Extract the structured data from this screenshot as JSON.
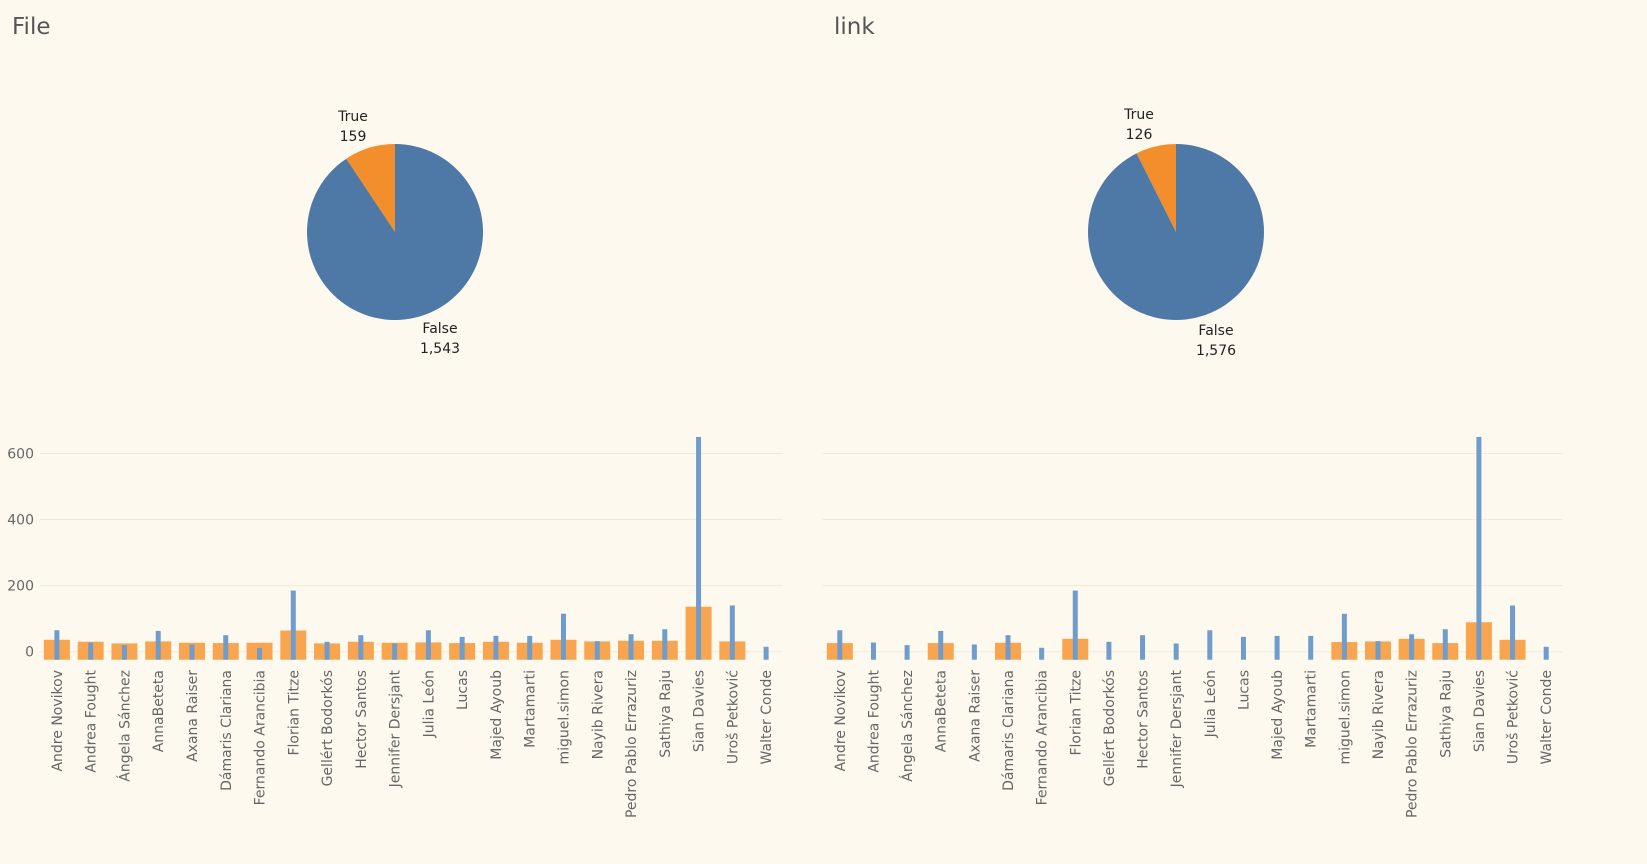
{
  "chart_data": [
    {
      "type": "pie",
      "title": "File",
      "slices": [
        {
          "label": "True",
          "value": 159,
          "display": "159",
          "color": "#f28e2b"
        },
        {
          "label": "False",
          "value": 1543,
          "display": "1,543",
          "color": "#4e79a7"
        }
      ]
    },
    {
      "type": "pie",
      "title": "link",
      "slices": [
        {
          "label": "True",
          "value": 126,
          "display": "126",
          "color": "#f28e2b"
        },
        {
          "label": "False",
          "value": 1576,
          "display": "1,576",
          "color": "#4e79a7"
        }
      ]
    },
    {
      "type": "bar",
      "categories": [
        "Andre Novikov",
        "Andrea Fought",
        "Ángela Sánchez",
        "AnnaBeteta",
        "Axana Raiser",
        "Dámaris Clariana",
        "Fernando Arancibia",
        "Florian Titze",
        "Gellért Bodorkós",
        "Hector Santos",
        "Jennifer Dersjant",
        "Julia León",
        "Lucas",
        "Majed Ayoub",
        "Martamarti",
        "miguel.simon",
        "Nayib Rivera",
        "Pedro Pablo Errazuriz",
        "Sathiya Raju",
        "Sian Davies",
        "Uroš Petković",
        "Walter Conde"
      ],
      "series": [
        {
          "values": [
            65,
            28,
            20,
            63,
            22,
            50,
            12,
            185,
            30,
            50,
            25,
            65,
            45,
            48,
            48,
            115,
            32,
            53,
            68,
            650,
            140,
            15
          ],
          "color": "#4e79a7"
        },
        {
          "values": [
            12,
            6,
            1,
            7,
            3,
            2,
            3,
            40,
            1,
            6,
            3,
            4,
            2,
            6,
            3,
            12,
            7,
            9,
            9,
            112,
            7,
            0
          ],
          "color": "#f28e2b"
        }
      ],
      "yticks": [
        0,
        200,
        400,
        600
      ],
      "ylim": [
        -25,
        680
      ]
    },
    {
      "type": "bar",
      "categories": [
        "Andre Novikov",
        "Andrea Fought",
        "Ángela Sánchez",
        "AnnaBeteta",
        "Axana Raiser",
        "Dámaris Clariana",
        "Fernando Arancibia",
        "Florian Titze",
        "Gellért Bodorkós",
        "Hector Santos",
        "Jennifer Dersjant",
        "Julia León",
        "Lucas",
        "Majed Ayoub",
        "Martamarti",
        "miguel.simon",
        "Nayib Rivera",
        "Pedro Pablo Errazuriz",
        "Sathiya Raju",
        "Sian Davies",
        "Uroš Petković",
        "Walter Conde"
      ],
      "series": [
        {
          "values": [
            65,
            28,
            20,
            63,
            22,
            50,
            12,
            185,
            30,
            50,
            25,
            65,
            45,
            48,
            48,
            115,
            32,
            53,
            68,
            650,
            140,
            15
          ],
          "color": "#4e79a7"
        },
        {
          "values": [
            2,
            0,
            0,
            2,
            0,
            3,
            0,
            15,
            0,
            0,
            0,
            0,
            0,
            0,
            0,
            5,
            7,
            15,
            2,
            65,
            12,
            0
          ],
          "color": "#f28e2b"
        }
      ],
      "yticks": [
        0,
        200,
        400,
        600
      ],
      "ylim": [
        -25,
        680
      ]
    }
  ]
}
